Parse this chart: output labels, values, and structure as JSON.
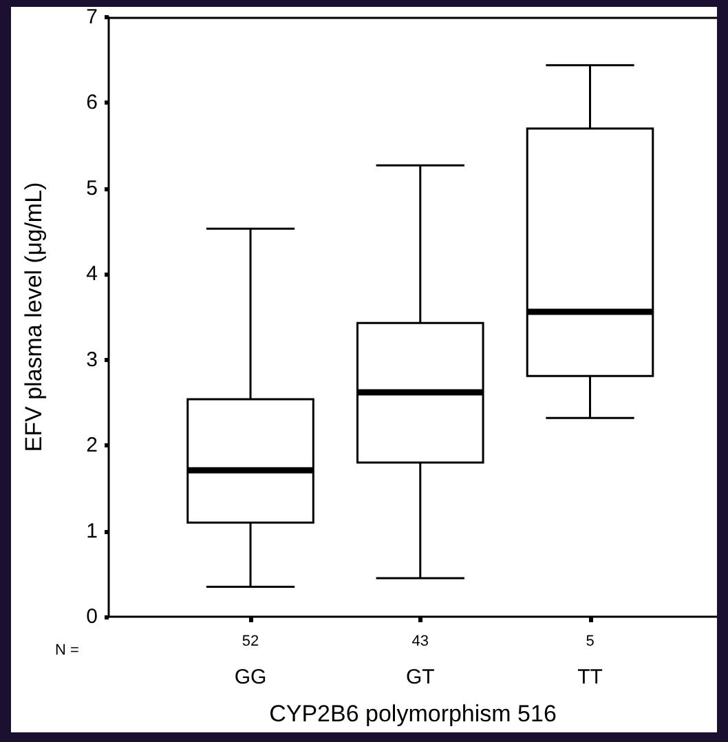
{
  "chart_data": {
    "type": "box",
    "xlabel": "CYP2B6 polymorphism 516",
    "ylabel": "EFV plasma level (μg/mL)",
    "categories": [
      "GG",
      "GT",
      "TT"
    ],
    "boxes": [
      {
        "low": 0.35,
        "q1": 1.1,
        "median": 1.71,
        "q3": 2.54,
        "high": 4.53
      },
      {
        "low": 0.45,
        "q1": 1.8,
        "median": 2.62,
        "q3": 3.43,
        "high": 5.27
      },
      {
        "low": 2.32,
        "q1": 2.81,
        "median": 3.56,
        "q3": 5.7,
        "high": 6.44
      }
    ],
    "ylim": [
      0,
      7
    ],
    "yticks": [
      0,
      1,
      2,
      3,
      4,
      5,
      6,
      7
    ],
    "annotations": [
      "N =",
      "52",
      "43",
      "5"
    ]
  }
}
